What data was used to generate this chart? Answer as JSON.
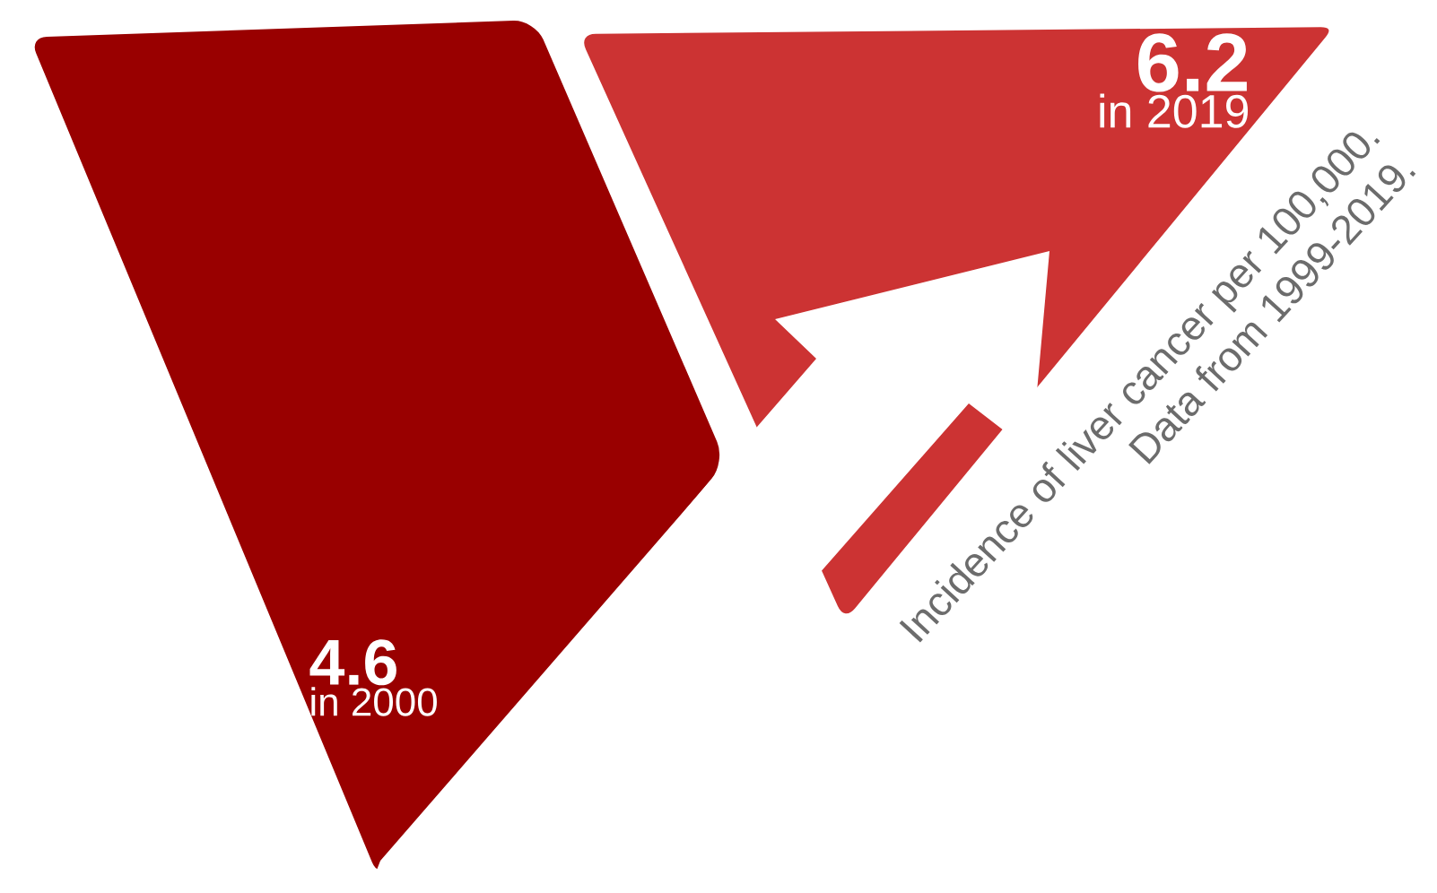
{
  "chart_data": {
    "type": "other",
    "categories": [
      "in 2000",
      "in 2019"
    ],
    "values": [
      4.6,
      6.2
    ],
    "colors": [
      "#990000",
      "#cc3333"
    ],
    "data_labels": true,
    "annotations": [
      "Incidence of liver cancer per 100,000.",
      "Data from 1999-2019."
    ]
  }
}
